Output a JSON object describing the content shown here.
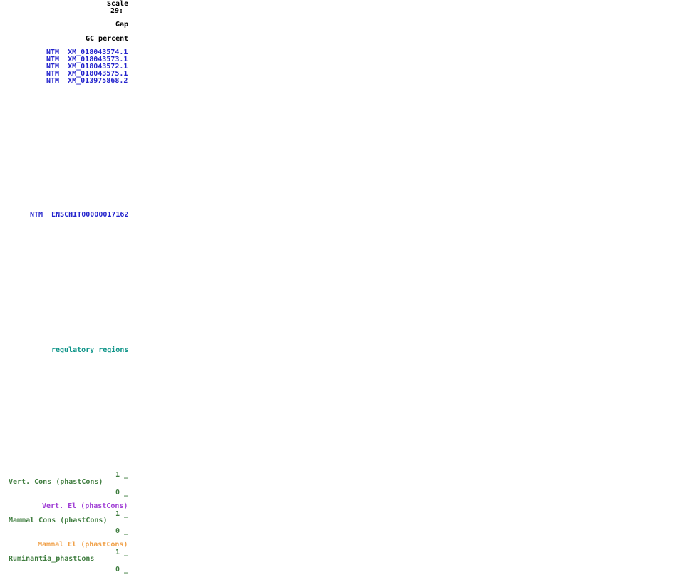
{
  "page": {
    "description": "Genome browser track label column with empty track display area"
  },
  "colors": {
    "background": "#ffffff",
    "text_black": "#000000",
    "gene_blue": "#2222cc",
    "regulatory_teal": "#0d9488",
    "cons_green": "#3f7d3f",
    "vert_el_purple": "#a040d5",
    "mammal_el_orange": "#f0a048"
  },
  "ruler": {
    "scale_label": "Scale",
    "position_label": "29:"
  },
  "tracks": {
    "gap_label": "Gap",
    "gc_percent_label": "GC percent",
    "refseq_items": [
      "NTM  XM_018043574.1",
      "NTM  XM_018043573.1",
      "NTM  XM_018043572.1",
      "NTM  XM_018043575.1",
      "NTM  XM_013975868.2"
    ],
    "ensembl_item": "NTM  ENSCHIT00000017162",
    "regulatory_label": "regulatory regions",
    "vert_cons_label": "Vert. Cons (phastCons)",
    "vert_el_label": "Vert. El (phastCons)",
    "mammal_cons_label": "Mammal Cons (phastCons)",
    "mammal_el_label": "Mammal El (phastCons)",
    "ruminantia_label": "Ruminantia_phastCons",
    "axis_max": "1 _",
    "axis_min": "0 _"
  }
}
